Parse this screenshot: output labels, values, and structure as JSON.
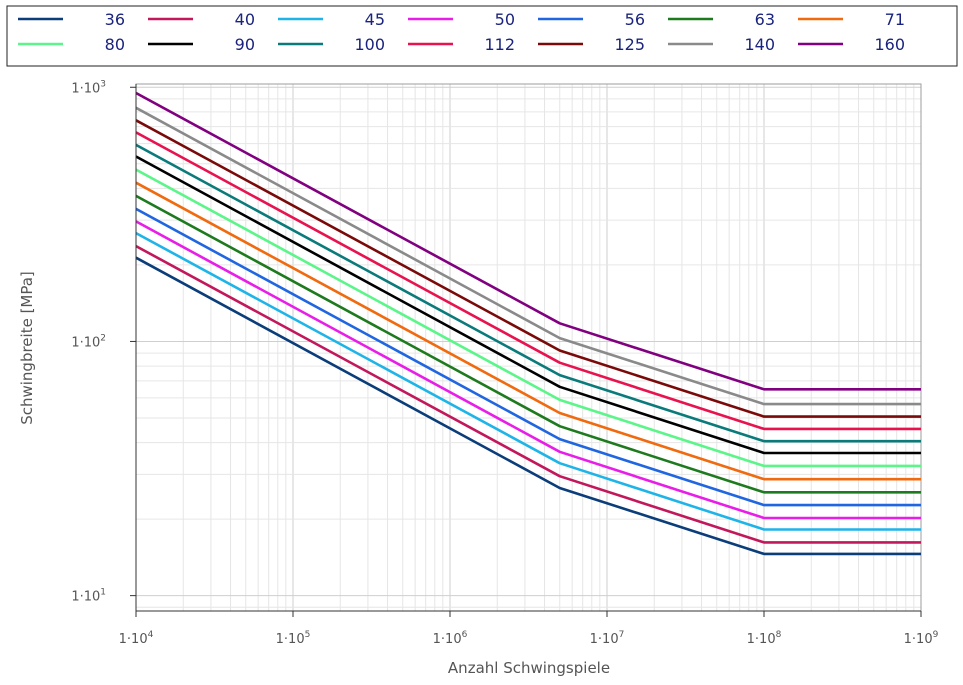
{
  "chart_data": {
    "type": "line",
    "xlabel": "Anzahl Schwingspiele",
    "ylabel": "Schwingbreite [MPa]",
    "xscale": "log",
    "yscale": "log",
    "xlim": [
      10000,
      1000000000
    ],
    "ylim": [
      8.7,
      1030
    ],
    "grid": true,
    "legend_position": "top",
    "x_ticks": [
      {
        "value": 10000,
        "base": "1·10",
        "exp": "4"
      },
      {
        "value": 100000,
        "base": "1·10",
        "exp": "5"
      },
      {
        "value": 1000000,
        "base": "1·10",
        "exp": "6"
      },
      {
        "value": 10000000,
        "base": "1·10",
        "exp": "7"
      },
      {
        "value": 100000000,
        "base": "1·10",
        "exp": "8"
      },
      {
        "value": 1000000000,
        "base": "1·10",
        "exp": "9"
      }
    ],
    "y_ticks": [
      {
        "value": 10,
        "base": "1·10",
        "exp": "1"
      },
      {
        "value": 100,
        "base": "1·10",
        "exp": "2"
      },
      {
        "value": 1000,
        "base": "1·10",
        "exp": "3"
      }
    ],
    "x": [
      10000,
      5000000,
      100000000,
      1000000000
    ],
    "series": [
      {
        "name": "36",
        "color": "#0b3d7a",
        "values": [
          213.5,
          26.5,
          14.6,
          14.6
        ]
      },
      {
        "name": "40",
        "color": "#c2185b",
        "values": [
          237.2,
          29.5,
          16.2,
          16.2
        ]
      },
      {
        "name": "45",
        "color": "#1fb4e8",
        "values": [
          266.9,
          33.2,
          18.2,
          18.2
        ]
      },
      {
        "name": "50",
        "color": "#e81ee8",
        "values": [
          296.6,
          36.8,
          20.2,
          20.2
        ]
      },
      {
        "name": "56",
        "color": "#1f66e0",
        "values": [
          332.2,
          41.3,
          22.7,
          22.7
        ]
      },
      {
        "name": "63",
        "color": "#1e7a1e",
        "values": [
          373.7,
          46.4,
          25.5,
          25.5
        ]
      },
      {
        "name": "71",
        "color": "#f06a0f",
        "values": [
          421.1,
          52.3,
          28.7,
          28.7
        ]
      },
      {
        "name": "80",
        "color": "#5cf58a",
        "values": [
          474.5,
          58.9,
          32.4,
          32.4
        ]
      },
      {
        "name": "90",
        "color": "#000000",
        "values": [
          533.9,
          66.3,
          36.4,
          36.4
        ]
      },
      {
        "name": "100",
        "color": "#0a7a7a",
        "values": [
          593.2,
          73.7,
          40.5,
          40.5
        ]
      },
      {
        "name": "112",
        "color": "#e8124f",
        "values": [
          664.4,
          82.5,
          45.3,
          45.3
        ]
      },
      {
        "name": "125",
        "color": "#7a0a0a",
        "values": [
          741.5,
          92.1,
          50.6,
          50.6
        ]
      },
      {
        "name": "140",
        "color": "#8a8a8a",
        "values": [
          830.5,
          103.1,
          56.7,
          56.7
        ]
      },
      {
        "name": "160",
        "color": "#800080",
        "values": [
          949.1,
          117.9,
          64.8,
          64.8
        ]
      }
    ]
  }
}
